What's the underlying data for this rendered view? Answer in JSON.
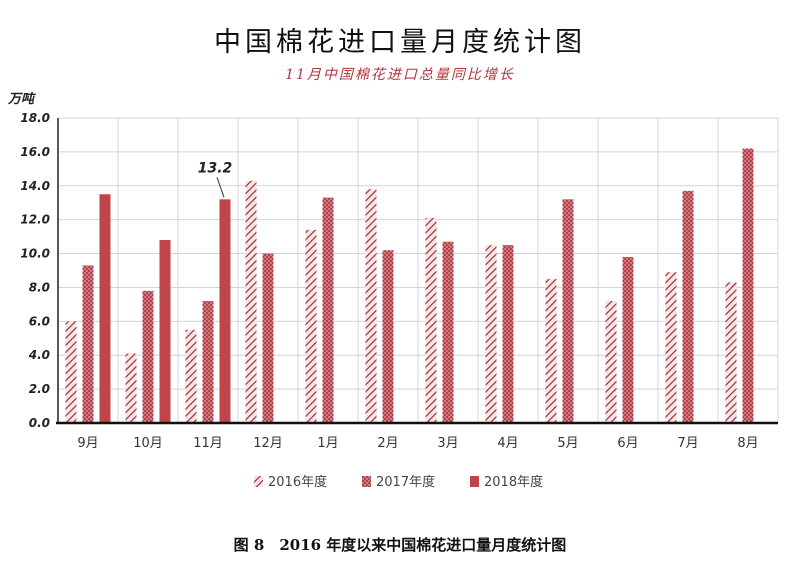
{
  "title": "中国棉花进口量月度统计图",
  "subtitle": "11月中国棉花进口总量同比增长",
  "unit": "万吨",
  "caption": "图 8　2016 年度以来中国棉花进口量月度统计图",
  "colors": {
    "s2016": "#b0363c",
    "s2017": "#b5404a",
    "s2018": "#c0454b"
  },
  "chart_data": {
    "type": "bar",
    "categories": [
      "9月",
      "10月",
      "11月",
      "12月",
      "1月",
      "2月",
      "3月",
      "4月",
      "5月",
      "6月",
      "7月",
      "8月"
    ],
    "series": [
      {
        "name": "2016年度",
        "pattern": "diagonal-hatch",
        "values": [
          6.0,
          4.1,
          5.5,
          14.3,
          11.4,
          13.8,
          12.1,
          10.5,
          8.5,
          7.2,
          8.9,
          8.3
        ]
      },
      {
        "name": "2017年度",
        "pattern": "dotted",
        "values": [
          9.3,
          7.8,
          7.2,
          10.0,
          13.3,
          10.2,
          10.7,
          10.5,
          13.2,
          9.8,
          13.7,
          16.2
        ]
      },
      {
        "name": "2018年度",
        "pattern": "solid",
        "values": [
          13.5,
          10.8,
          13.2,
          null,
          null,
          null,
          null,
          null,
          null,
          null,
          null,
          null
        ]
      }
    ],
    "ylim": [
      0,
      18
    ],
    "yticks": [
      "0.0",
      "2.0",
      "4.0",
      "6.0",
      "8.0",
      "10.0",
      "12.0",
      "14.0",
      "16.0",
      "18.0"
    ],
    "grid": true,
    "legend_position": "bottom",
    "annotations": [
      {
        "series": "2018年度",
        "category": "11月",
        "text": "13.2"
      }
    ]
  }
}
